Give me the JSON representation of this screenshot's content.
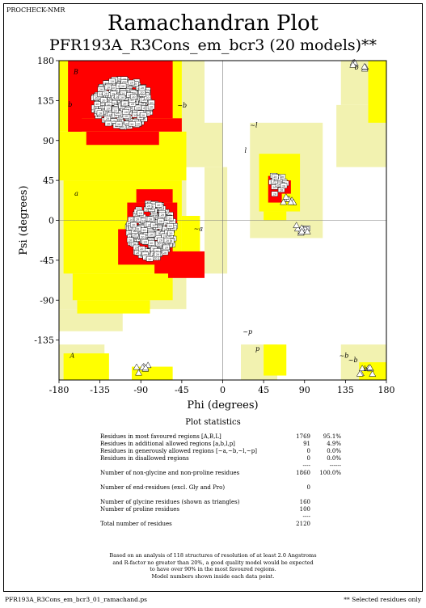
{
  "header": {
    "program": "PROCHECK-NMR"
  },
  "chart_data": {
    "type": "scatter",
    "title": "Ramachandran Plot",
    "subtitle": "PFR193A_R3Cons_em_bcr3 (20 models)**",
    "xlabel": "Phi (degrees)",
    "ylabel": "Psi (degrees)",
    "xlim": [
      -180,
      180
    ],
    "ylim": [
      -180,
      180
    ],
    "xticks": [
      "-180",
      "-135",
      "-90",
      "-45",
      "0",
      "45",
      "90",
      "135",
      "180"
    ],
    "yticks": [
      "180",
      "135",
      "90",
      "45",
      "0",
      "-45",
      "-90",
      "-135"
    ],
    "region_labels": [
      "B",
      "b",
      "~b",
      "b",
      "~l",
      "l",
      "a",
      "~a",
      "A",
      "~b",
      "b",
      "~p",
      "p",
      "~b"
    ],
    "point_label": "20",
    "colors": {
      "favoured": "#ff0000",
      "allowed": "#ffff00",
      "generous": "#f2f2b0",
      "disallowed": "#ffffff"
    },
    "clusters": [
      {
        "region": "beta",
        "phi": -110,
        "psi": 132,
        "count": 300
      },
      {
        "region": "alpha-right",
        "phi": -78,
        "psi": -12,
        "count": 240
      },
      {
        "region": "alpha-left",
        "phi": 60,
        "psi": 40,
        "count": 20
      },
      {
        "region": "other",
        "phi": 90,
        "psi": -10,
        "count": 6
      }
    ],
    "glycine_triangles": [
      {
        "phi": 150,
        "psi": 175
      },
      {
        "phi": 158,
        "psi": -170
      },
      {
        "phi": -88,
        "psi": -168
      },
      {
        "phi": 73,
        "psi": 22
      },
      {
        "phi": 88,
        "psi": -10
      }
    ]
  },
  "stats": {
    "title": "Plot statistics",
    "rows": [
      {
        "label": "Residues in most favoured regions  [A,B,L]",
        "v1": "1769",
        "v2": "95.1%"
      },
      {
        "label": "Residues in additional allowed regions  [a,b,l,p]",
        "v1": "91",
        "v2": "4.9%"
      },
      {
        "label": "Residues in generously allowed regions  [~a,~b,~l,~p]",
        "v1": "0",
        "v2": "0.0%"
      },
      {
        "label": "Residues in disallowed regions",
        "v1": "0",
        "v2": "0.0%"
      },
      {
        "label": "",
        "v1": "----",
        "v2": "------"
      },
      {
        "label": "Number of non-glycine and non-proline residues",
        "v1": "1860",
        "v2": "100.0%"
      },
      {
        "label": "",
        "v1": "",
        "v2": ""
      },
      {
        "label": "Number of end-residues (excl. Gly and Pro)",
        "v1": "0",
        "v2": ""
      },
      {
        "label": "",
        "v1": "",
        "v2": ""
      },
      {
        "label": "Number of glycine residues (shown as triangles)",
        "v1": "160",
        "v2": ""
      },
      {
        "label": "Number of proline residues",
        "v1": "100",
        "v2": ""
      },
      {
        "label": "",
        "v1": "----",
        "v2": ""
      },
      {
        "label": "Total number of residues",
        "v1": "2120",
        "v2": ""
      }
    ]
  },
  "note": {
    "line1": "Based on an analysis of 118 structures of resolution of at least 2.0 Angstroms",
    "line2": "and R-factor no greater than 20%, a good quality model would be expected",
    "line3": "to have over 90% in the most favoured regions.",
    "line4": "Model numbers shown inside each data point."
  },
  "footer": {
    "filename": "PFR193A_R3Cons_em_bcr3_01_ramachand.ps",
    "selected": "** Selected residues only"
  }
}
